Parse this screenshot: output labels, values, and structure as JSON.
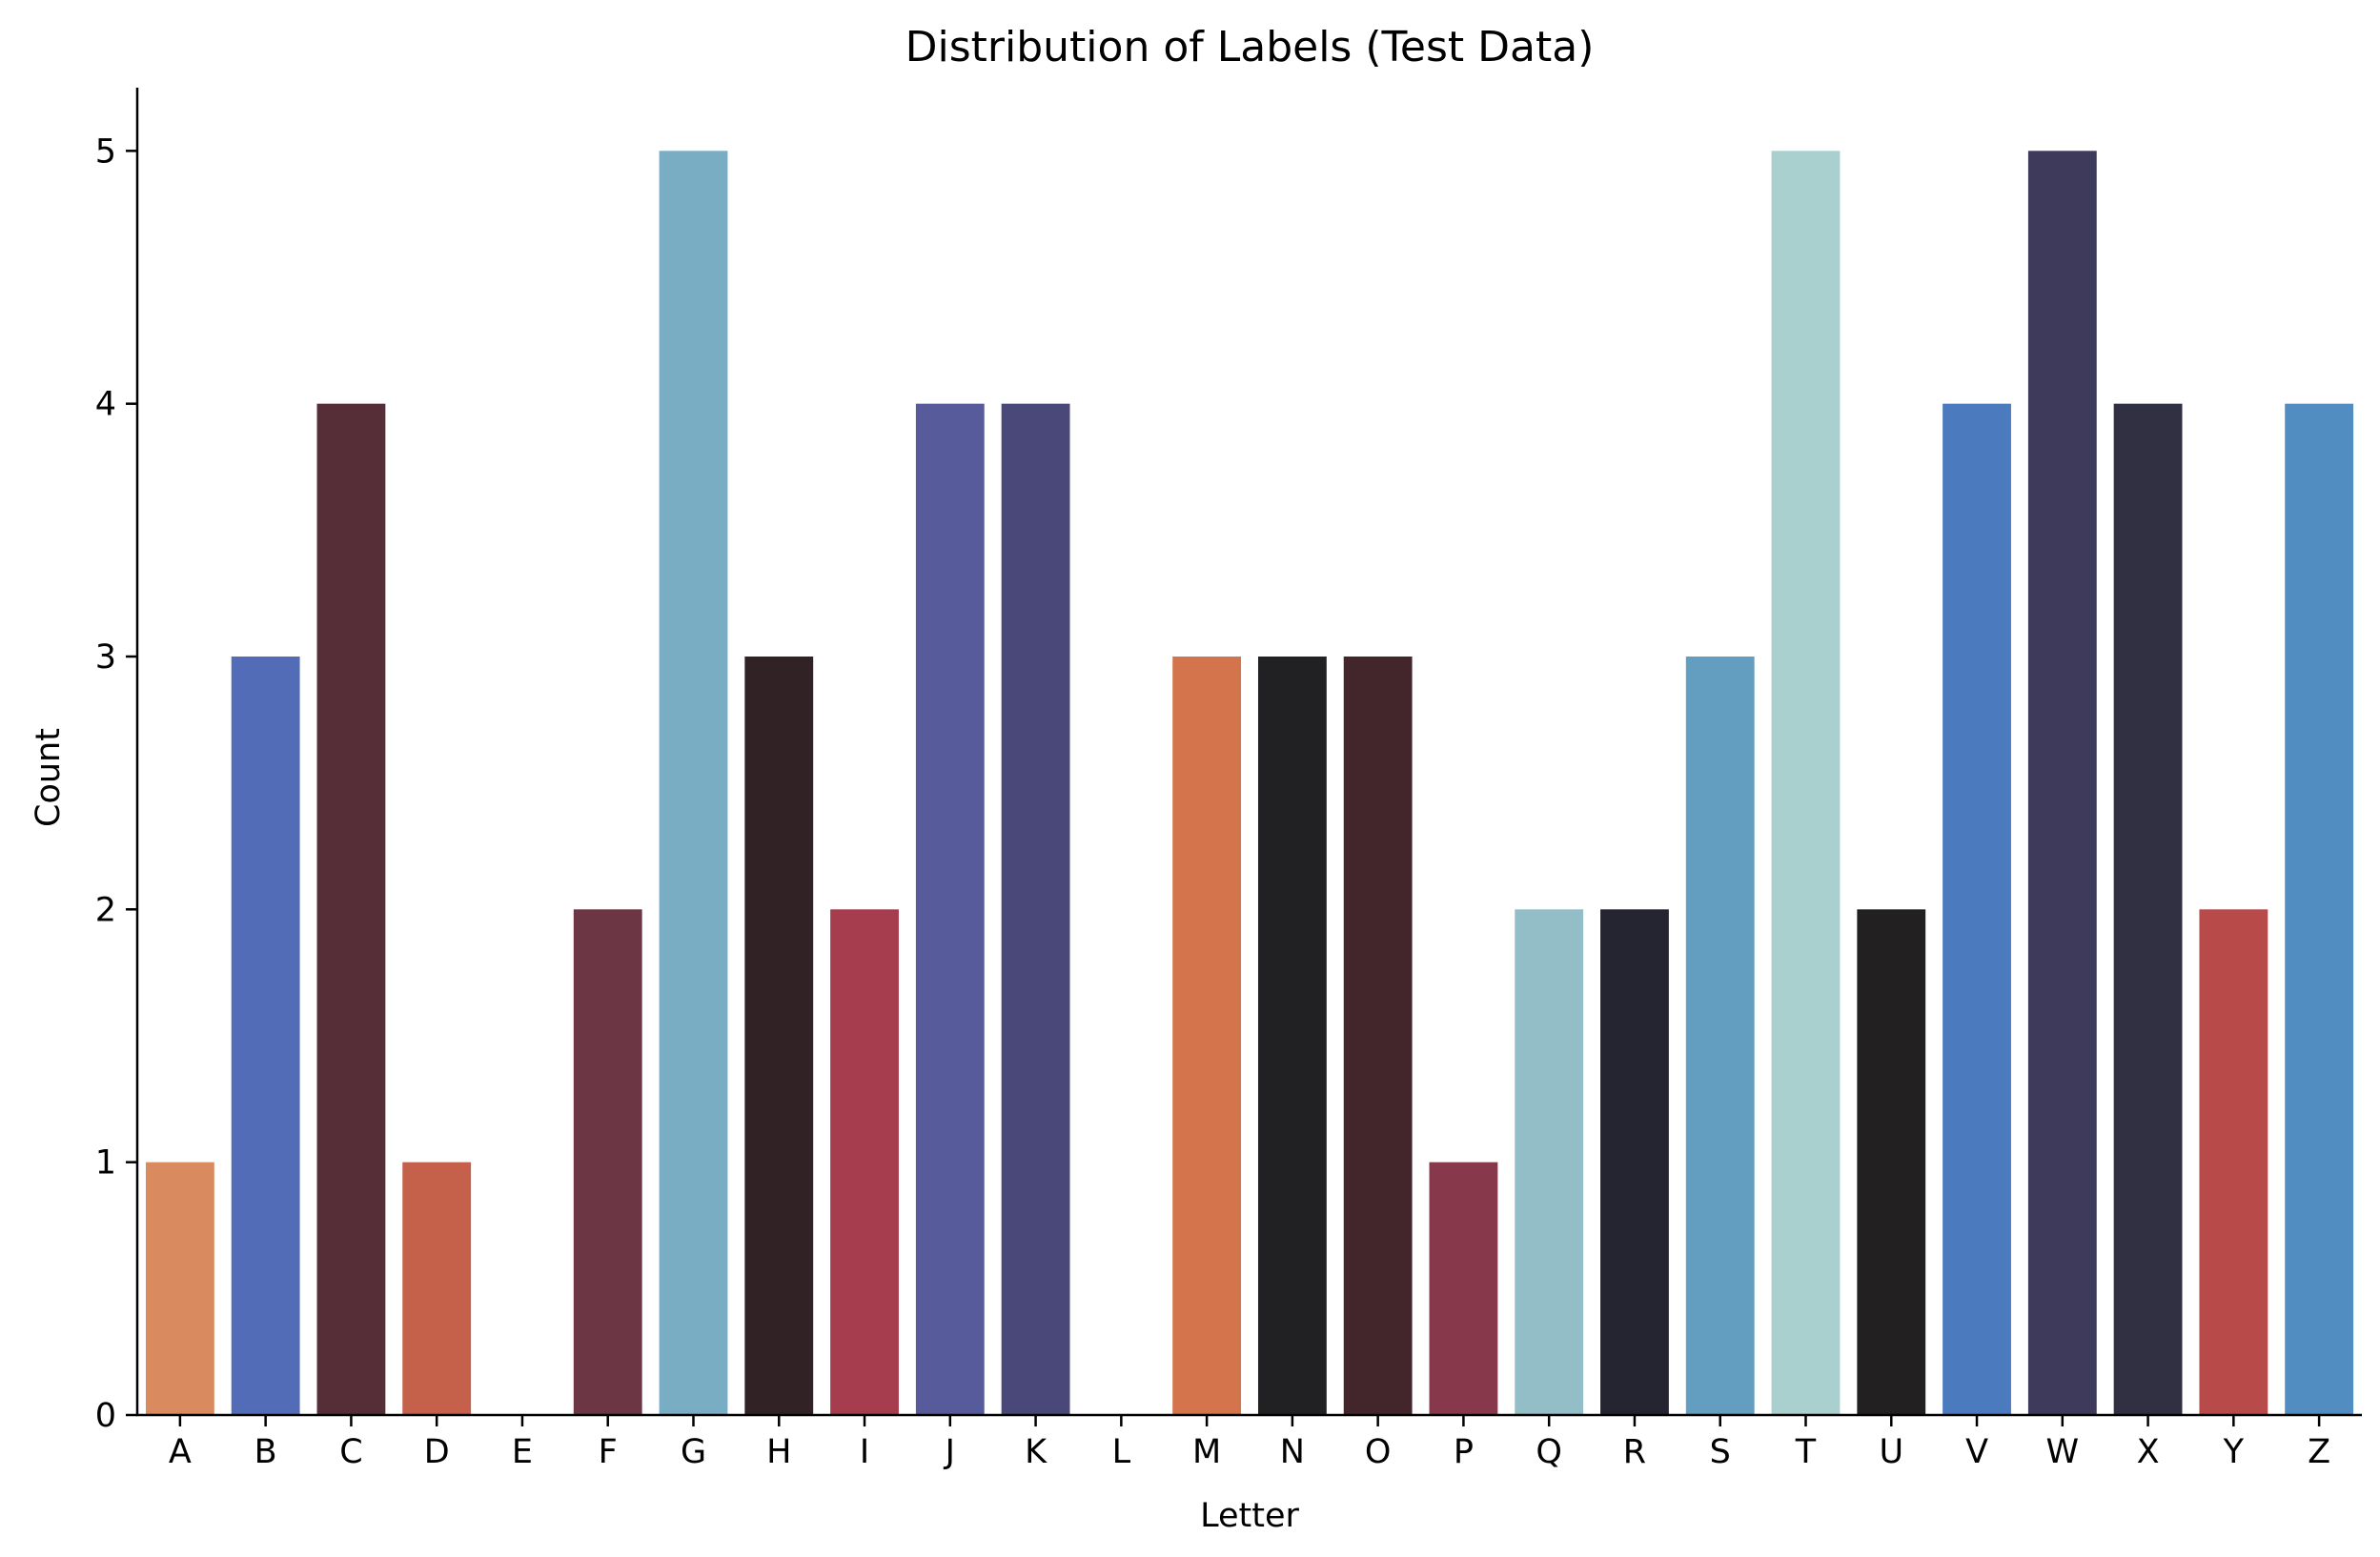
{
  "chart_data": {
    "type": "bar",
    "title": "Distribution of Labels (Test Data)",
    "xlabel": "Letter",
    "ylabel": "Count",
    "ylim": [
      0,
      5.25
    ],
    "yticks": [
      0,
      1,
      2,
      3,
      4,
      5
    ],
    "grid": false,
    "legend": "none",
    "categories": [
      "A",
      "B",
      "C",
      "D",
      "E",
      "F",
      "G",
      "H",
      "I",
      "J",
      "K",
      "L",
      "M",
      "N",
      "O",
      "P",
      "Q",
      "R",
      "S",
      "T",
      "U",
      "V",
      "W",
      "X",
      "Y",
      "Z"
    ],
    "values": [
      1,
      3,
      4,
      1,
      0,
      2,
      5,
      3,
      2,
      4,
      4,
      0,
      3,
      3,
      3,
      1,
      2,
      2,
      3,
      5,
      2,
      4,
      5,
      4,
      2,
      4
    ],
    "colors": [
      "#d98a5e",
      "#536cb8",
      "#562e38",
      "#c5614a",
      "#ffffff",
      "#6d3644",
      "#79adc4",
      "#312226",
      "#a63d4e",
      "#575a9b",
      "#4a4878",
      "#ffffff",
      "#d3744d",
      "#212123",
      "#42262c",
      "#88384b",
      "#93bec8",
      "#252431",
      "#639dc0",
      "#a9d0cf",
      "#232021",
      "#4b7bbe",
      "#3d3a5c",
      "#313043",
      "#b84a4a",
      "#518dc0"
    ]
  }
}
